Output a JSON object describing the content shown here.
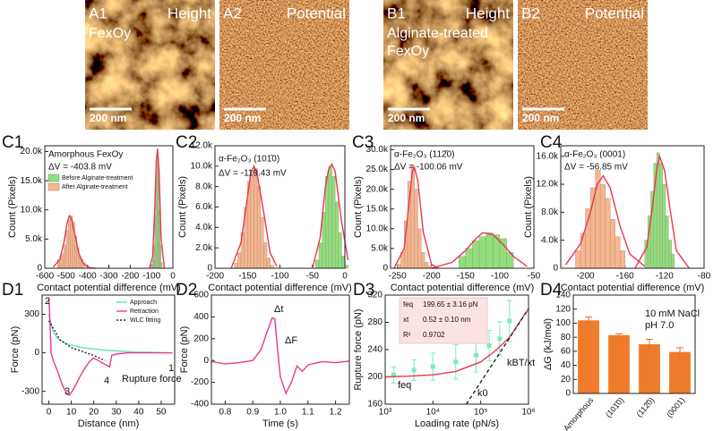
{
  "images": [
    {
      "label": "A1",
      "title": "Height",
      "caption": [
        "FexOy"
      ],
      "scale": "200 nm",
      "kind": "height"
    },
    {
      "label": "A2",
      "title": "Potential",
      "scale": "200 nm",
      "kind": "potential"
    },
    {
      "label": "B1",
      "title": "Height",
      "caption": [
        "Alginate-treated",
        "FexOy"
      ],
      "scale": "200 nm",
      "kind": "height"
    },
    {
      "label": "B2",
      "title": "Potential",
      "scale": "200 nm",
      "kind": "potential"
    }
  ],
  "chart_data": [
    {
      "type": "histogram",
      "label": "C1",
      "title": "Amorphous FexOy",
      "annotations": [
        "ΔV = -403.8 mV"
      ],
      "xlabel": "Contact potential difference (mV)",
      "ylabel": "Count (Pixels)",
      "xlim": [
        -600,
        0
      ],
      "xticks": [
        -600,
        -500,
        -400,
        -300,
        -200,
        -100,
        0
      ],
      "ylim": [
        0,
        21000
      ],
      "yticks": [
        0,
        {
          "value": 5000,
          "label": "5.0k"
        },
        {
          "value": 10000,
          "label": "10.0k"
        },
        {
          "value": 15000,
          "label": "15.0k"
        },
        {
          "value": 20000,
          "label": "20.0k"
        }
      ],
      "series": [
        {
          "name": "Before Alginate-treatment",
          "color": "#8ee07a",
          "kind": "histogram",
          "bins": [
            -100,
            -95,
            -90,
            -85,
            -80,
            -75,
            -70,
            -65,
            -60,
            -55,
            -50
          ],
          "values": [
            500,
            1500,
            4000,
            9000,
            16000,
            20000,
            17000,
            10000,
            4000,
            1000
          ]
        },
        {
          "name": "After Alginate-treatment",
          "color": "#f5b68c",
          "kind": "histogram",
          "bins": [
            -540,
            -530,
            -520,
            -510,
            -500,
            -490,
            -480,
            -470,
            -460,
            -450,
            -440,
            -430,
            -420,
            -410
          ],
          "values": [
            1500,
            2000,
            2500,
            4000,
            6500,
            8500,
            9000,
            8000,
            5500,
            3500,
            2000,
            1500,
            1000
          ]
        },
        {
          "color": "#e8384f",
          "kind": "line",
          "x": [
            -560,
            -530,
            -510,
            -495,
            -485,
            -475,
            -460,
            -440,
            -420,
            -390,
            -360
          ],
          "values": [
            200,
            1500,
            4500,
            7800,
            9000,
            8500,
            6000,
            2500,
            800,
            100,
            0
          ]
        },
        {
          "color": "#e8384f",
          "kind": "line",
          "x": [
            -110,
            -95,
            -85,
            -78,
            -72,
            -65,
            -55,
            -40
          ],
          "values": [
            0,
            2000,
            10000,
            18000,
            20500,
            17000,
            5000,
            0
          ]
        }
      ]
    },
    {
      "type": "histogram",
      "label": "C2",
      "title": "α-Fe₂O₃ (101̄0)",
      "annotations": [
        "ΔV = -119.43 mV"
      ],
      "xlabel": "Contact potential difference (mV)",
      "ylabel": "Count (Pixels)",
      "xlim": [
        -200,
        0
      ],
      "xticks": [
        -200,
        -150,
        -100,
        -50,
        0
      ],
      "ylim": [
        0,
        12000
      ],
      "yticks": [
        0,
        {
          "value": 2000,
          "label": "2.0k"
        },
        {
          "value": 4000,
          "label": "4.0k"
        },
        {
          "value": 6000,
          "label": "6.0k"
        },
        {
          "value": 8000,
          "label": "8.0k"
        },
        {
          "value": 10000,
          "label": "10.0k"
        },
        {
          "value": 12000,
          "label": "12.0k"
        }
      ],
      "series": [
        {
          "color": "#f5b68c",
          "kind": "histogram",
          "bins": [
            -170,
            -165,
            -160,
            -155,
            -150,
            -145,
            -140,
            -135,
            -130,
            -125,
            -120,
            -115,
            -110
          ],
          "values": [
            500,
            1500,
            3500,
            6000,
            8500,
            9500,
            9800,
            8000,
            5000,
            2500,
            1000,
            300
          ]
        },
        {
          "color": "#8ee07a",
          "kind": "histogram",
          "bins": [
            -45,
            -40,
            -35,
            -30,
            -25,
            -20,
            -15,
            -10,
            -5,
            0,
            5
          ],
          "values": [
            800,
            2500,
            5500,
            9000,
            10000,
            9000,
            6500,
            3500,
            1200,
            300
          ]
        },
        {
          "color": "#e8384f",
          "kind": "line",
          "x": [
            -175,
            -160,
            -150,
            -145,
            -140,
            -135,
            -125,
            -115,
            -105
          ],
          "values": [
            0,
            2500,
            7000,
            9300,
            10000,
            9200,
            5500,
            1500,
            200
          ]
        },
        {
          "color": "#e8384f",
          "kind": "line",
          "x": [
            -50,
            -38,
            -30,
            -25,
            -20,
            -15,
            -5,
            5
          ],
          "values": [
            0,
            3000,
            8000,
            9700,
            10200,
            9500,
            4500,
            800
          ]
        }
      ]
    },
    {
      "type": "histogram",
      "label": "C3",
      "title": "α-Fe₂O₃ (112̄0)",
      "annotations": [
        "ΔV = -100.06 mV"
      ],
      "xlabel": "Contact potential difference (mV)",
      "ylabel": "Count (Pixels)",
      "xlim": [
        -260,
        -50
      ],
      "xticks": [
        -250,
        -200,
        -150,
        -100,
        -50
      ],
      "ylim": [
        0,
        31000
      ],
      "yticks": [
        0,
        {
          "value": 5000,
          "label": "5.0k"
        },
        {
          "value": 10000,
          "label": "10.0k"
        },
        {
          "value": 15000,
          "label": "15.0k"
        },
        {
          "value": 20000,
          "label": "20.0k"
        },
        {
          "value": 25000,
          "label": "25.0k"
        },
        {
          "value": 30000,
          "label": "30.0k"
        }
      ],
      "series": [
        {
          "color": "#f5b68c",
          "kind": "histogram",
          "bins": [
            -250,
            -245,
            -240,
            -235,
            -230,
            -225,
            -220,
            -215,
            -210,
            -205,
            -200
          ],
          "values": [
            1000,
            4000,
            12000,
            22000,
            26000,
            20000,
            10000,
            4000,
            1500,
            500
          ]
        },
        {
          "color": "#8ee07a",
          "kind": "histogram",
          "bins": [
            -160,
            -150,
            -140,
            -130,
            -120,
            -110,
            -100,
            -90,
            -80
          ],
          "values": [
            3000,
            5000,
            7000,
            8000,
            9000,
            8500,
            7500,
            4000
          ]
        },
        {
          "color": "#e8384f",
          "kind": "line",
          "x": [
            -255,
            -240,
            -232,
            -228,
            -225,
            -220,
            -212,
            -200,
            -190
          ],
          "values": [
            0,
            5000,
            18000,
            24500,
            25500,
            22000,
            9000,
            1000,
            0
          ]
        },
        {
          "color": "#e8384f",
          "kind": "line",
          "x": [
            -200,
            -170,
            -150,
            -135,
            -125,
            -110,
            -95,
            -80,
            -60
          ],
          "values": [
            0,
            1500,
            4500,
            7500,
            9000,
            8500,
            6000,
            3000,
            500
          ]
        }
      ]
    },
    {
      "type": "histogram",
      "label": "C4",
      "title": "α-Fe₂O₃ (0001)",
      "annotations": [
        "ΔV = -56.85 mV"
      ],
      "xlabel": "Contact potential difference (mV)",
      "ylabel": "Count (Pixels)",
      "xlim": [
        -225,
        -80
      ],
      "xticks": [
        -200,
        -160,
        -120,
        -80
      ],
      "ylim": [
        0,
        17500
      ],
      "yticks": [
        0,
        {
          "value": 4000,
          "label": "4.0k"
        },
        {
          "value": 8000,
          "label": "8.0k"
        },
        {
          "value": 12000,
          "label": "12.0k"
        },
        {
          "value": 16000,
          "label": "16.0k"
        }
      ],
      "series": [
        {
          "color": "#f5b68c",
          "kind": "histogram",
          "bins": [
            -210,
            -205,
            -200,
            -195,
            -190,
            -185,
            -180,
            -175,
            -170,
            -165,
            -160
          ],
          "values": [
            2500,
            5000,
            8500,
            11500,
            14000,
            12000,
            10000,
            7000,
            4500,
            2500
          ]
        },
        {
          "color": "#8ee07a",
          "kind": "histogram",
          "bins": [
            -140,
            -137,
            -134,
            -131,
            -128,
            -125,
            -122,
            -119,
            -116,
            -113,
            -110
          ],
          "values": [
            4000,
            7500,
            11000,
            15000,
            16500,
            15000,
            12000,
            7500,
            4000,
            2000
          ]
        },
        {
          "color": "#e8384f",
          "kind": "line",
          "x": [
            -220,
            -205,
            -195,
            -188,
            -182,
            -175,
            -165,
            -155,
            -140
          ],
          "values": [
            500,
            3500,
            8000,
            12000,
            13200,
            11500,
            6000,
            2000,
            300
          ]
        },
        {
          "color": "#e8384f",
          "kind": "line",
          "x": [
            -150,
            -138,
            -132,
            -128,
            -125,
            -120,
            -115,
            -108,
            -95
          ],
          "values": [
            0,
            3000,
            9000,
            14000,
            16000,
            14000,
            9000,
            2500,
            0
          ]
        }
      ]
    },
    {
      "type": "line",
      "label": "D1",
      "annotations": [
        "1",
        "2",
        "3",
        "4",
        "Rupture force"
      ],
      "xlabel": "Distance (nm)",
      "ylabel": "Force (pN)",
      "xlim": [
        -3,
        56
      ],
      "xticks": [
        0,
        10,
        20,
        30,
        40,
        50
      ],
      "ylim": [
        -400,
        450
      ],
      "yticks": [
        -300,
        0,
        300
      ],
      "series": [
        {
          "name": "Approach",
          "color": "#5fe0c0",
          "kind": "line",
          "x": [
            0,
            2,
            4,
            6,
            8,
            10,
            15,
            20,
            25,
            30,
            35,
            40,
            45,
            50,
            55
          ],
          "values": [
            300,
            160,
            110,
            90,
            70,
            60,
            40,
            30,
            20,
            15,
            10,
            5,
            5,
            0,
            0
          ]
        },
        {
          "name": "Retraction",
          "color": "#e8388f",
          "kind": "line",
          "x": [
            0,
            0.5,
            1,
            2,
            4,
            6,
            8,
            9,
            10,
            12,
            14,
            16,
            18,
            20,
            22,
            24,
            26,
            27,
            28,
            30,
            35,
            45,
            55
          ],
          "values": [
            420,
            250,
            0,
            -60,
            -150,
            -250,
            -320,
            -330,
            -310,
            -250,
            -180,
            -120,
            -70,
            -40,
            -60,
            -80,
            -100,
            -110,
            -20,
            -10,
            0,
            0,
            0
          ]
        },
        {
          "name": "WLC fitting",
          "color": "#222222",
          "kind": "line",
          "style": "dotted",
          "x": [
            0,
            5,
            10,
            15,
            20,
            25
          ],
          "values": [
            250,
            100,
            40,
            10,
            -20,
            -60
          ]
        }
      ]
    },
    {
      "type": "line",
      "label": "D2",
      "annotations": [
        "Δt",
        "ΔF"
      ],
      "xlabel": "Time (s)",
      "ylabel": "Force (pN)",
      "xlim": [
        0.75,
        1.25
      ],
      "xticks": [
        0.8,
        0.9,
        {
          "value": 1,
          "label": "1.0"
        },
        1.1,
        1.2
      ],
      "ylim": [
        -400,
        600
      ],
      "yticks": [
        -400,
        -200,
        0,
        200,
        400,
        600
      ],
      "series": [
        {
          "color": "#e8388f",
          "kind": "line",
          "x": [
            0.75,
            0.8,
            0.85,
            0.9,
            0.93,
            0.95,
            0.97,
            0.98,
            0.99,
            1,
            1.02,
            1.04,
            1.06,
            1.08,
            1.1,
            1.15,
            1.2,
            1.25
          ],
          "values": [
            -10,
            -30,
            -20,
            0,
            100,
            250,
            390,
            380,
            100,
            -150,
            -300,
            -200,
            -50,
            -100,
            -40,
            -10,
            -20,
            -5
          ]
        }
      ]
    },
    {
      "type": "scatter",
      "label": "D3",
      "annotations": [
        "feq",
        "k0",
        "kBT/xt"
      ],
      "table": [
        [
          "feq",
          "199.65 ± 3.16 pN"
        ],
        [
          "xt",
          "0.52 ± 0.10 nm"
        ],
        [
          "R²",
          "0.9702"
        ]
      ],
      "xlabel": "Loading rate (pN/s)",
      "ylabel": "Rupture force (pN)",
      "xscale": "log",
      "xlim": [
        1000,
        1000000
      ],
      "xticks": [
        {
          "value": 1000,
          "label": "10³"
        },
        {
          "value": 10000,
          "label": "10⁴"
        },
        {
          "value": 100000,
          "label": "10⁵"
        },
        {
          "value": 1000000,
          "label": "10⁶"
        }
      ],
      "ylim": [
        160,
        320
      ],
      "yticks": [
        160,
        200,
        240,
        280,
        320
      ],
      "series": [
        {
          "color": "#7ee8c0",
          "kind": "points",
          "x": [
            1500,
            4000,
            10000,
            30000,
            80000,
            150000,
            250000,
            400000
          ],
          "values": [
            203,
            210,
            215,
            222,
            232,
            246,
            256,
            282
          ],
          "errors": [
            12,
            15,
            20,
            25,
            25,
            22,
            25,
            30
          ]
        },
        {
          "color": "#e8384f",
          "kind": "line",
          "x": [
            1000,
            3000,
            10000,
            30000,
            100000,
            200000,
            400000,
            1000000
          ],
          "values": [
            200,
            201,
            203,
            208,
            222,
            238,
            258,
            300
          ]
        },
        {
          "color": "#222222",
          "kind": "line",
          "style": "dashed",
          "x": [
            50000,
            1000000
          ],
          "values": [
            160,
            300
          ]
        }
      ]
    },
    {
      "type": "bar",
      "label": "D4",
      "annotations": [
        "10 mM NaCl",
        "pH 7.0"
      ],
      "ylabel": "ΔG (kJ/mol)",
      "categories": [
        "Amorphous",
        "(101̄0)",
        "(112̄0)",
        "(0001)"
      ],
      "values": [
        104,
        83,
        70,
        59
      ],
      "errors": [
        5,
        2,
        7,
        6
      ],
      "color": "#ef7c2a",
      "ylim": [
        0,
        140
      ],
      "yticks": [
        0,
        20,
        40,
        60,
        80,
        100,
        120,
        140
      ]
    }
  ]
}
